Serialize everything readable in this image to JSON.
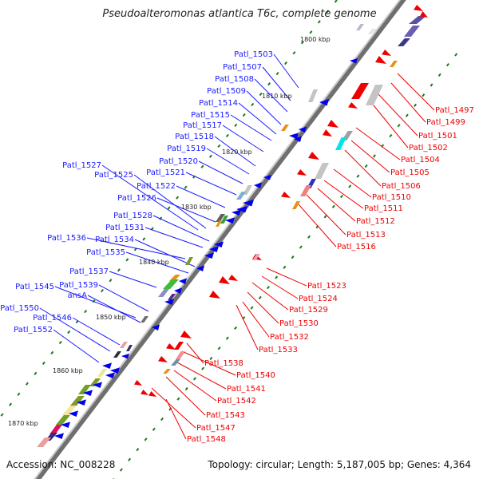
{
  "title": "Pseudoalteromonas atlantica T6c, complete genome",
  "accession": "Accession: NC_008228",
  "topology": "Topology: circular; Length: 5,187,005 bp; Genes: 4,364",
  "colors": {
    "backbone": "#8a8a8a",
    "forward_gene": "#0000ee",
    "reverse_gene": "#ee0000",
    "forward_label": "#1a1aff",
    "reverse_label": "#ee0000",
    "tick": "#1a7a1a"
  },
  "scale_marks": [
    "1800 kbp",
    "1810 kbp",
    "1820 kbp",
    "1830 kbp",
    "1840 kbp",
    "1850 kbp",
    "1860 kbp",
    "1870 kbp"
  ],
  "forward_labels": [
    "Patl_1503",
    "Patl_1507",
    "Patl_1508",
    "Patl_1509",
    "Patl_1514",
    "Patl_1515",
    "Patl_1517",
    "Patl_1518",
    "Patl_1519",
    "Patl_1520",
    "Patl_1527",
    "Patl_1525",
    "Patl_1521",
    "Patl_1522",
    "Patl_1526",
    "Patl_1528",
    "Patl_1531",
    "Patl_1536",
    "Patl_1534",
    "Patl_1535",
    "Patl_1537",
    "Patl_1545",
    "Patl_1539",
    "ansA",
    "Patl_1550",
    "Patl_1546",
    "Patl_1552"
  ],
  "reverse_labels": [
    "Patl_1497",
    "Patl_1499",
    "Patl_1501",
    "Patl_1502",
    "Patl_1504",
    "Patl_1505",
    "Patl_1506",
    "Patl_1510",
    "Patl_1511",
    "Patl_1512",
    "Patl_1513",
    "Patl_1516",
    "Patl_1523",
    "Patl_1524",
    "Patl_1529",
    "Patl_1530",
    "Patl_1532",
    "Patl_1533",
    "Patl_1538",
    "Patl_1540",
    "Patl_1541",
    "Patl_1542",
    "Patl_1543",
    "Patl_1547",
    "Patl_1548"
  ]
}
